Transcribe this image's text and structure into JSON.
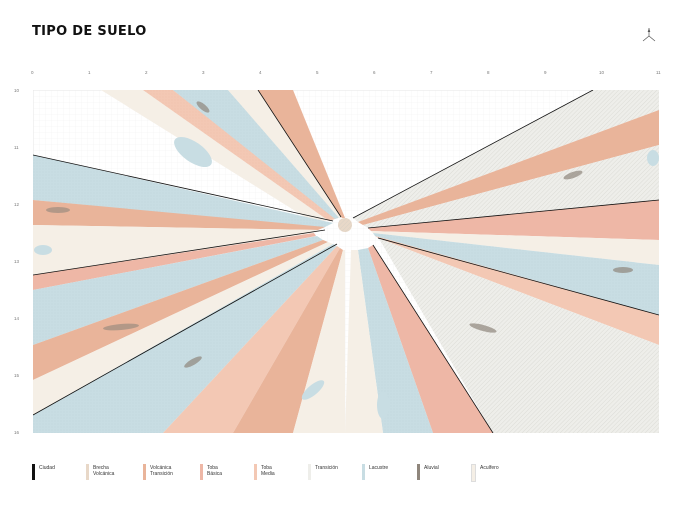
{
  "title": "TIPO DE SUELO",
  "axis_top_ticks": [
    "0",
    "1",
    "2",
    "3",
    "4",
    "5",
    "6",
    "7",
    "8",
    "9",
    "10",
    "11"
  ],
  "axis_left_ticks": [
    "10",
    "11",
    "12",
    "13",
    "14",
    "15",
    "16"
  ],
  "colors": {
    "ciudad": "#111111",
    "brecha": "#e8d8c8",
    "volcanica_transicion": "#e9b49a",
    "toba_basica": "#eeb7a6",
    "toba_media": "#f3c8b4",
    "transicion": "#eeeeea",
    "lacustre": "#c8dde3",
    "aluvial": "#8f867c",
    "acuifero": "#f5efe6"
  },
  "legend": [
    {
      "id": "ciudad",
      "label": "Ciudad"
    },
    {
      "id": "brecha",
      "label": "Brecha\nVolcánica"
    },
    {
      "id": "volcanica_transicion",
      "label": "Volcánica\nTransición"
    },
    {
      "id": "toba_basica",
      "label": "Toba\nBásica"
    },
    {
      "id": "toba_media",
      "label": "Toba\nMedia"
    },
    {
      "id": "transicion",
      "label": "Transición"
    },
    {
      "id": "lacustre",
      "label": "Lacustre"
    },
    {
      "id": "aluvial",
      "label": "Aluvial"
    },
    {
      "id": "acuifero",
      "label": "Acuífero"
    }
  ]
}
